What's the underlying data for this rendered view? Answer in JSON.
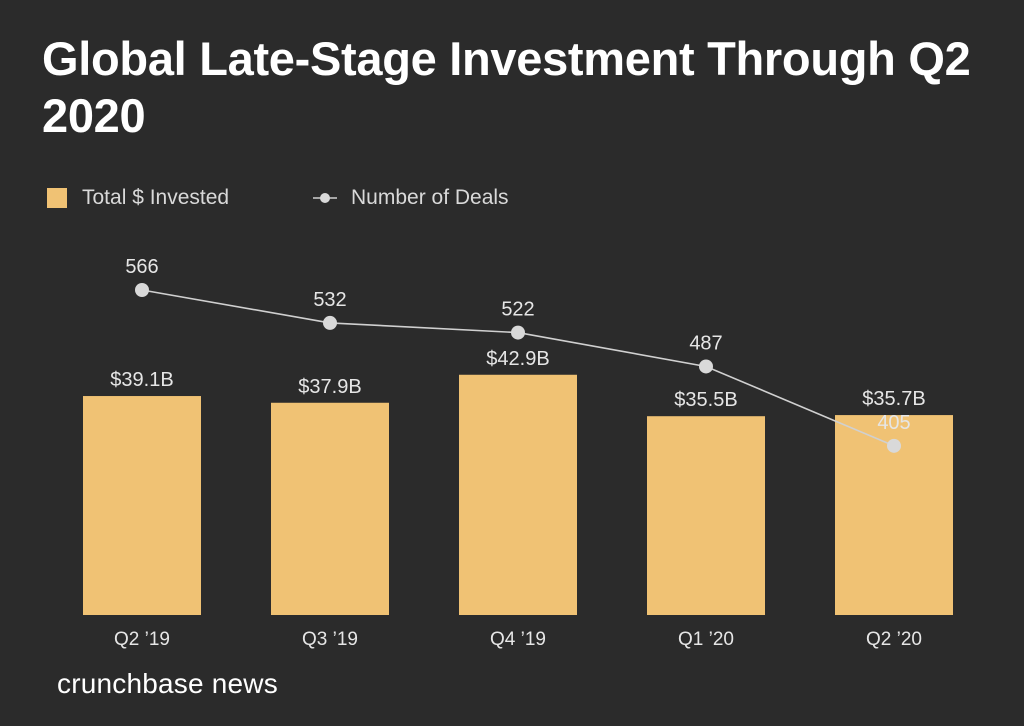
{
  "chart_data": {
    "type": "bar",
    "title": "Global Late-Stage Investment Through Q2 2020",
    "categories": [
      "Q2 ’19",
      "Q3 ’19",
      "Q4 ’19",
      "Q1 ’20",
      "Q2 ’20"
    ],
    "series": [
      {
        "name": "Total $ Invested",
        "type": "bar",
        "values": [
          39.1,
          37.9,
          42.9,
          35.5,
          35.7
        ],
        "labels": [
          "$39.1B",
          "$37.9B",
          "$42.9B",
          "$35.5B",
          "$35.7B"
        ],
        "unit": "$B"
      },
      {
        "name": "Number of Deals",
        "type": "line",
        "values": [
          566,
          532,
          522,
          487,
          405
        ],
        "labels": [
          "566",
          "532",
          "522",
          "487",
          "405"
        ]
      }
    ],
    "xlabel": "",
    "ylabel": "",
    "legend_position": "top-left"
  },
  "colors": {
    "background": "#2b2b2b",
    "bar": "#f0c274",
    "line": "#d0d0d0",
    "marker": "#d9d9d9",
    "text": "#ffffff",
    "label": "#e6e6e6"
  },
  "branding": {
    "text": "crunchbase news"
  }
}
